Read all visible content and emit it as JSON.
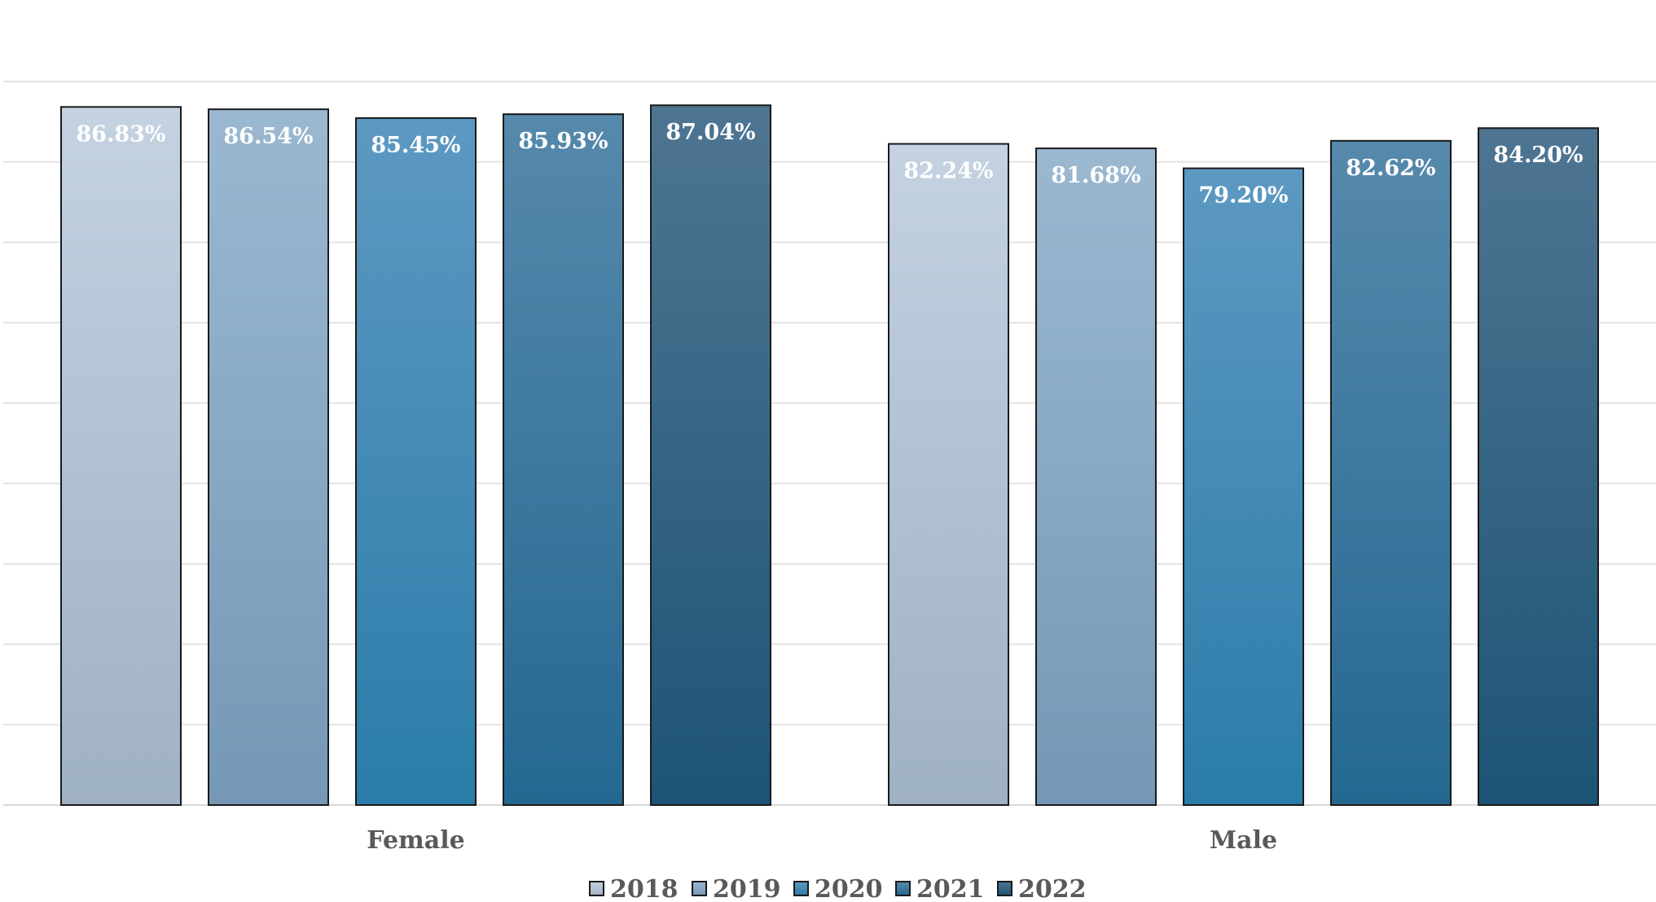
{
  "chart_data": {
    "type": "bar",
    "categories": [
      "Female",
      "Male"
    ],
    "series": [
      {
        "name": "2018",
        "values": [
          86.83,
          82.24
        ],
        "labels": [
          "86.83%",
          "82.24%"
        ],
        "color_top": "#c4d2e1",
        "color_bottom": "#9fb1c4"
      },
      {
        "name": "2019",
        "values": [
          86.54,
          81.68
        ],
        "labels": [
          "86.54%",
          "81.68%"
        ],
        "color_top": "#9bb8d0",
        "color_bottom": "#7598b6"
      },
      {
        "name": "2020",
        "values": [
          85.45,
          79.2
        ],
        "labels": [
          "85.45%",
          "79.20%"
        ],
        "color_top": "#5d99c2",
        "color_bottom": "#2a7ca9"
      },
      {
        "name": "2021",
        "values": [
          85.93,
          82.62
        ],
        "labels": [
          "85.93%",
          "82.62%"
        ],
        "color_top": "#5689ac",
        "color_bottom": "#246891"
      },
      {
        "name": "2022",
        "values": [
          87.04,
          84.2
        ],
        "labels": [
          "87.04%",
          "84.20%"
        ],
        "color_top": "#4e7592",
        "color_bottom": "#1d5475"
      }
    ],
    "ylim": [
      0,
      90
    ],
    "grid": true,
    "legend": "bottom"
  }
}
